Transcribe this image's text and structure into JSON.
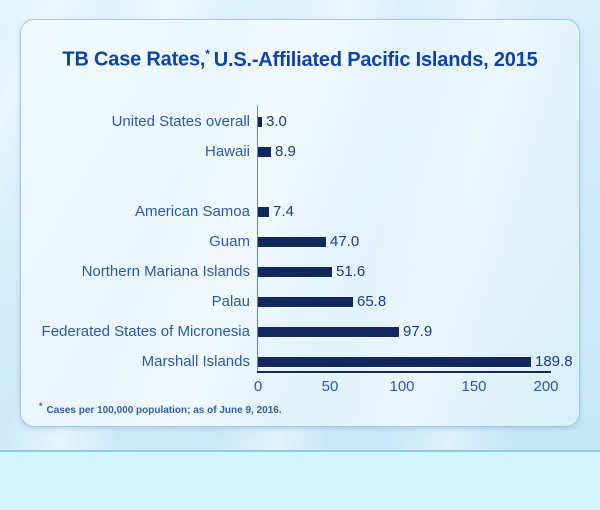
{
  "title": {
    "prefix": "TB Case Rates,",
    "asterisk": "*",
    "suffix": "U.S.-Affiliated Pacific Islands, 2015"
  },
  "footnote": {
    "asterisk": "*",
    "text": "Cases per 100,000 population;  as of June 9, 2016."
  },
  "chart_data": {
    "type": "bar",
    "orientation": "horizontal",
    "title": "TB Case Rates, U.S.-Affiliated Pacific Islands, 2015",
    "categories": [
      "United States overall",
      "Hawaii",
      "American Samoa",
      "Guam",
      "Northern Mariana Islands",
      "Palau",
      "Federated States of Micronesia",
      "Marshall Islands"
    ],
    "values": [
      3.0,
      8.9,
      7.4,
      47.0,
      51.6,
      65.8,
      97.9,
      189.8
    ],
    "value_labels": [
      "3.0",
      "8.9",
      "7.4",
      "47.0",
      "51.6",
      "65.8",
      "97.9",
      "189.8"
    ],
    "group_gap_after_index": 1,
    "x_ticks": [
      0,
      50,
      100,
      150,
      200
    ],
    "xlim": [
      0,
      200
    ],
    "xlabel": "",
    "ylabel": "",
    "grid": false,
    "legend": false,
    "bar_color": "#12275c",
    "category_label_color": "#2a5aad",
    "value_label_color": "#1b3c90",
    "tick_label_color": "#2a5aad",
    "title_color": "#0c43a4"
  }
}
